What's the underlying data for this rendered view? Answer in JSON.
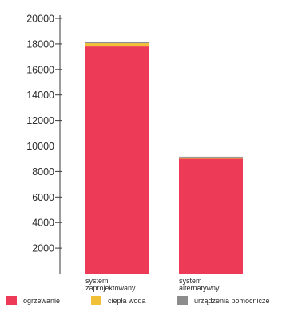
{
  "chart_data": {
    "type": "bar",
    "stacked": true,
    "categories": [
      [
        "system",
        "zaprojektowany"
      ],
      [
        "system",
        "alternatywny"
      ]
    ],
    "series": [
      {
        "name": "ogrzewanie",
        "color": "#ec3a57",
        "values": [
          17800,
          9000
        ]
      },
      {
        "name": "ciepła woda",
        "color": "#f2c037",
        "values": [
          250,
          100
        ]
      },
      {
        "name": "urządzenia pomocnicze",
        "color": "#8c8c8c",
        "values": [
          80,
          60
        ]
      }
    ],
    "yticks": [
      2000,
      4000,
      6000,
      8000,
      10000,
      12000,
      14000,
      16000,
      18000,
      20000
    ],
    "ylim": [
      0,
      20000
    ],
    "grid": false,
    "legend_position": "bottom"
  }
}
